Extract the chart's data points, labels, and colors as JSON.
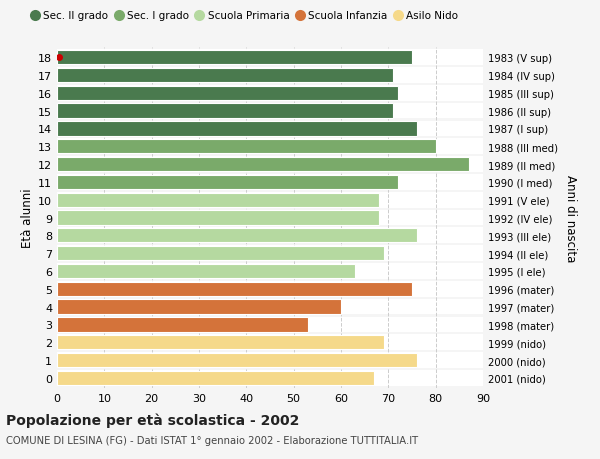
{
  "ages": [
    18,
    17,
    16,
    15,
    14,
    13,
    12,
    11,
    10,
    9,
    8,
    7,
    6,
    5,
    4,
    3,
    2,
    1,
    0
  ],
  "values": [
    75,
    71,
    72,
    71,
    76,
    80,
    87,
    72,
    68,
    68,
    76,
    69,
    63,
    75,
    60,
    53,
    69,
    76,
    67
  ],
  "right_labels": [
    "1983 (V sup)",
    "1984 (IV sup)",
    "1985 (III sup)",
    "1986 (II sup)",
    "1987 (I sup)",
    "1988 (III med)",
    "1989 (II med)",
    "1990 (I med)",
    "1991 (V ele)",
    "1992 (IV ele)",
    "1993 (III ele)",
    "1994 (II ele)",
    "1995 (I ele)",
    "1996 (mater)",
    "1997 (mater)",
    "1998 (mater)",
    "1999 (nido)",
    "2000 (nido)",
    "2001 (nido)"
  ],
  "colors": [
    "#4a7a4e",
    "#4a7a4e",
    "#4a7a4e",
    "#4a7a4e",
    "#4a7a4e",
    "#7aaa6a",
    "#7aaa6a",
    "#7aaa6a",
    "#b5d9a0",
    "#b5d9a0",
    "#b5d9a0",
    "#b5d9a0",
    "#b5d9a0",
    "#d4733a",
    "#d4733a",
    "#d4733a",
    "#f5d98a",
    "#f5d98a",
    "#f5d98a"
  ],
  "legend_labels": [
    "Sec. II grado",
    "Sec. I grado",
    "Scuola Primaria",
    "Scuola Infanzia",
    "Asilo Nido"
  ],
  "legend_colors": [
    "#4a7a4e",
    "#7aaa6a",
    "#b5d9a0",
    "#d4733a",
    "#f5d98a"
  ],
  "ylabel_left": "Età alunni",
  "ylabel_right": "Anni di nascita",
  "title": "Popolazione per età scolastica - 2002",
  "subtitle": "COMUNE DI LESINA (FG) - Dati ISTAT 1° gennaio 2002 - Elaborazione TUTTITALIA.IT",
  "xlim": [
    0,
    90
  ],
  "xticks": [
    0,
    10,
    20,
    30,
    40,
    50,
    60,
    70,
    80,
    90
  ],
  "background_color": "#f5f5f5",
  "row_bg_color": "#ffffff",
  "grid_color": "#cccccc",
  "special_dot_age": 18,
  "special_dot_color": "#cc0000"
}
